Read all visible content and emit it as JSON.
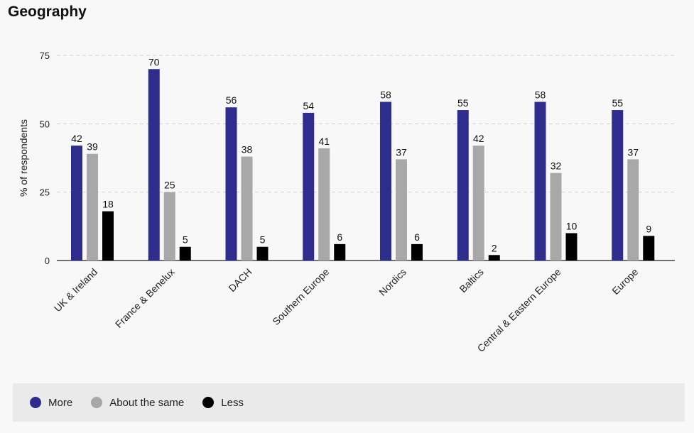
{
  "title": "Geography",
  "chart_data": {
    "type": "bar",
    "title": "Geography",
    "xlabel": "",
    "ylabel": "% of respondents",
    "ylim": [
      0,
      75
    ],
    "yticks": [
      0,
      25,
      50,
      75
    ],
    "grid": true,
    "legend_position": "bottom",
    "categories": [
      "UK & Ireland",
      "France & Benelux",
      "DACH",
      "Southern Europe",
      "Nordics",
      "Baltics",
      "Central & Eastern Europe",
      "Europe"
    ],
    "series": [
      {
        "name": "More",
        "color": "#2e2c8c",
        "values": [
          42,
          70,
          56,
          54,
          58,
          55,
          58,
          55
        ]
      },
      {
        "name": "About the same",
        "color": "#a8a8a8",
        "values": [
          39,
          25,
          38,
          41,
          37,
          42,
          32,
          37
        ]
      },
      {
        "name": "Less",
        "color": "#000000",
        "values": [
          18,
          5,
          5,
          6,
          6,
          2,
          10,
          9
        ]
      }
    ]
  }
}
